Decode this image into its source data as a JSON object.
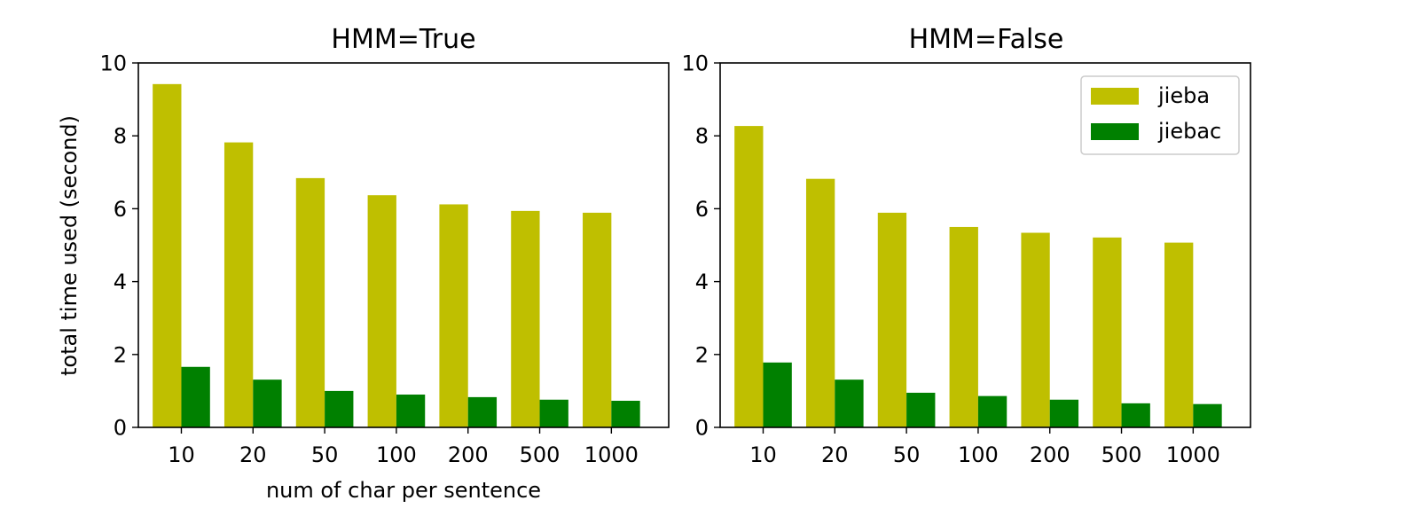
{
  "chart_data": [
    {
      "type": "bar",
      "title": "HMM=True",
      "xlabel": "num of char per sentence",
      "ylabel": "total time used (second)",
      "ylim": [
        0,
        10
      ],
      "yticks": [
        "0",
        "2",
        "4",
        "6",
        "8",
        "10"
      ],
      "categories": [
        "10",
        "20",
        "50",
        "100",
        "200",
        "500",
        "1000"
      ],
      "series": [
        {
          "name": "jieba",
          "color": "#bfbf00",
          "values": [
            9.42,
            7.82,
            6.84,
            6.37,
            6.12,
            5.94,
            5.89
          ]
        },
        {
          "name": "jiebac",
          "color": "#008000",
          "values": [
            1.66,
            1.31,
            1.0,
            0.9,
            0.83,
            0.76,
            0.73
          ]
        }
      ],
      "legend": null,
      "grid": false
    },
    {
      "type": "bar",
      "title": "HMM=False",
      "xlabel": "",
      "ylabel": "",
      "ylim": [
        0,
        10
      ],
      "yticks": [
        "0",
        "2",
        "4",
        "6",
        "8",
        "10"
      ],
      "categories": [
        "10",
        "20",
        "50",
        "100",
        "200",
        "500",
        "1000"
      ],
      "series": [
        {
          "name": "jieba",
          "color": "#bfbf00",
          "values": [
            8.27,
            6.82,
            5.89,
            5.5,
            5.34,
            5.21,
            5.07
          ]
        },
        {
          "name": "jiebac",
          "color": "#008000",
          "values": [
            1.78,
            1.31,
            0.95,
            0.86,
            0.76,
            0.66,
            0.64
          ]
        }
      ],
      "legend": "top-right",
      "grid": false
    }
  ]
}
